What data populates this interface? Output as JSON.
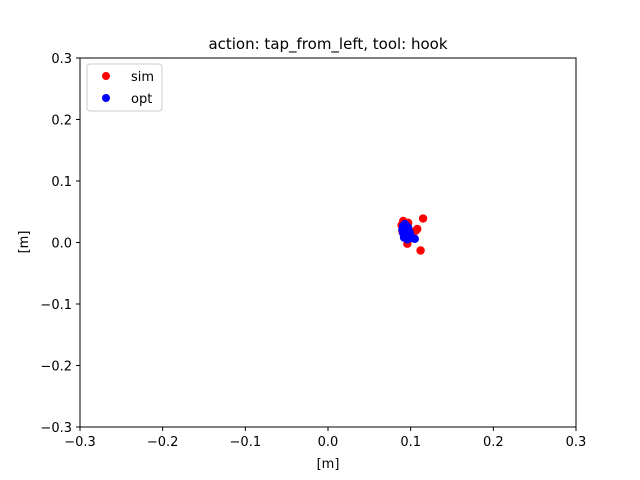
{
  "chart_data": {
    "type": "scatter",
    "title": "action: tap_from_left, tool: hook",
    "xlabel": "[m]",
    "ylabel": "[m]",
    "xlim": [
      -0.3,
      0.3
    ],
    "ylim": [
      -0.3,
      0.3
    ],
    "xticks": [
      -0.3,
      -0.2,
      -0.1,
      0.0,
      0.1,
      0.2,
      0.3
    ],
    "yticks": [
      -0.3,
      -0.2,
      -0.1,
      0.0,
      0.1,
      0.2,
      0.3
    ],
    "xtick_labels": [
      "−0.3",
      "−0.2",
      "−0.1",
      "0.0",
      "0.1",
      "0.2",
      "0.3"
    ],
    "ytick_labels": [
      "−0.3",
      "−0.2",
      "−0.1",
      "0.0",
      "0.1",
      "0.2",
      "0.3"
    ],
    "grid": false,
    "legend_position": "top-left",
    "series": [
      {
        "name": "sim",
        "color": "#ff0000",
        "points": [
          [
            0.115,
            0.039
          ],
          [
            0.112,
            -0.013
          ],
          [
            0.108,
            0.022
          ],
          [
            0.106,
            0.019
          ],
          [
            0.096,
            -0.002
          ],
          [
            0.091,
            0.035
          ],
          [
            0.097,
            0.032
          ],
          [
            0.089,
            0.028
          ],
          [
            0.093,
            0.024
          ],
          [
            0.1,
            0.015
          ],
          [
            0.094,
            0.01
          ],
          [
            0.098,
            0.006
          ],
          [
            0.103,
            0.008
          ],
          [
            0.09,
            0.018
          ],
          [
            0.095,
            0.02
          ]
        ]
      },
      {
        "name": "opt",
        "color": "#0000ff",
        "points": [
          [
            0.091,
            0.027
          ],
          [
            0.093,
            0.03
          ],
          [
            0.095,
            0.026
          ],
          [
            0.097,
            0.024
          ],
          [
            0.092,
            0.022
          ],
          [
            0.094,
            0.019
          ],
          [
            0.096,
            0.017
          ],
          [
            0.091,
            0.015
          ],
          [
            0.093,
            0.012
          ],
          [
            0.095,
            0.01
          ],
          [
            0.098,
            0.013
          ],
          [
            0.1,
            0.009
          ],
          [
            0.102,
            0.007
          ],
          [
            0.105,
            0.006
          ],
          [
            0.097,
            0.02
          ],
          [
            0.099,
            0.016
          ],
          [
            0.092,
            0.008
          ],
          [
            0.096,
            0.005
          ],
          [
            0.094,
            0.028
          ],
          [
            0.09,
            0.021
          ]
        ]
      }
    ]
  }
}
